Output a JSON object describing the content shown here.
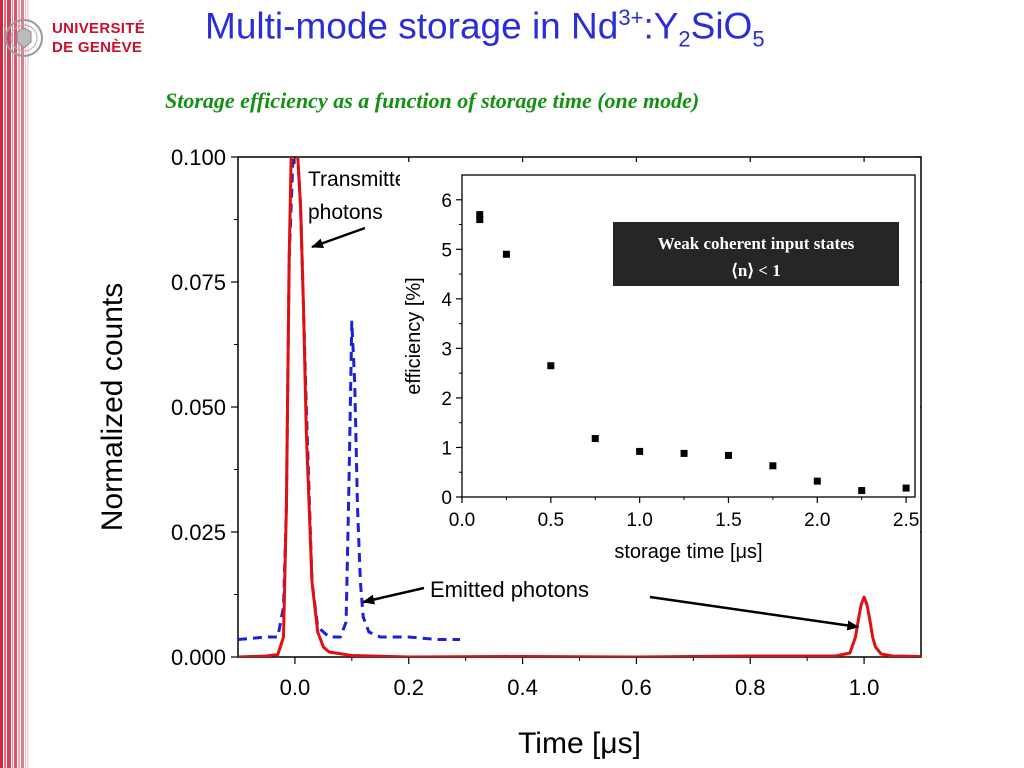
{
  "logo": {
    "line1": "UNIVERSITÉ",
    "line2": "DE GENÈVE",
    "seal_icon": "university-seal-icon",
    "color": "#c8102e"
  },
  "title": {
    "main": "Multi-mode storage in Nd",
    "sup": "3+",
    "mid": ":Y",
    "sub1": "2",
    "mid2": "SiO",
    "sub2": "5",
    "color": "#2b2ed8"
  },
  "subtitle": "Storage efficiency as a function of storage time (one mode)",
  "colors": {
    "red": "#e01010",
    "blue": "#1f1fd8",
    "green": "#129112",
    "stripe": "#c8102e"
  },
  "chart_data": [
    {
      "type": "line",
      "xlabel": "Time [μs]",
      "ylabel": "Normalized counts",
      "xlim": [
        -0.1,
        1.1
      ],
      "ylim": [
        0,
        0.1
      ],
      "xticks": [
        0.0,
        0.2,
        0.4,
        0.6,
        0.8,
        1.0
      ],
      "xtick_labels": [
        "0.0",
        "0.2",
        "0.4",
        "0.6",
        "0.8",
        "1.0"
      ],
      "yticks": [
        0.0,
        0.025,
        0.05,
        0.075,
        0.1
      ],
      "ytick_labels": [
        "0.000",
        "0.025",
        "0.050",
        "0.075",
        "0.100"
      ],
      "series": [
        {
          "style": "solid",
          "color": "#e01010",
          "x": [
            -0.1,
            -0.05,
            -0.03,
            -0.02,
            -0.015,
            -0.01,
            -0.005,
            0.0,
            0.005,
            0.01,
            0.015,
            0.02,
            0.03,
            0.04,
            0.05,
            0.06,
            0.1,
            0.2,
            0.4,
            0.6,
            0.8,
            0.95,
            0.975,
            0.985,
            0.99,
            0.995,
            1.0,
            1.005,
            1.01,
            1.015,
            1.02,
            1.03,
            1.05,
            1.1
          ],
          "y": [
            0.0,
            0.0002,
            0.0005,
            0.004,
            0.03,
            0.08,
            0.11,
            0.11,
            0.1,
            0.09,
            0.07,
            0.045,
            0.015,
            0.005,
            0.002,
            0.001,
            0.0003,
            0.0,
            0.0001,
            0.0,
            0.0002,
            0.0002,
            0.0008,
            0.004,
            0.0075,
            0.0105,
            0.012,
            0.0105,
            0.0075,
            0.004,
            0.002,
            0.0006,
            0.0002,
            0.0001
          ]
        },
        {
          "style": "dashed",
          "color": "#1f1fd8",
          "x": [
            -0.1,
            -0.05,
            -0.03,
            -0.02,
            -0.015,
            -0.01,
            0.0,
            0.01,
            0.02,
            0.03,
            0.04,
            0.06,
            0.08,
            0.09,
            0.095,
            0.1,
            0.105,
            0.11,
            0.115,
            0.12,
            0.13,
            0.15,
            0.2,
            0.25,
            0.29
          ],
          "y": [
            0.0035,
            0.004,
            0.004,
            0.01,
            0.03,
            0.08,
            0.11,
            0.09,
            0.05,
            0.015,
            0.006,
            0.004,
            0.004,
            0.007,
            0.035,
            0.067,
            0.055,
            0.03,
            0.015,
            0.008,
            0.005,
            0.004,
            0.004,
            0.0035,
            0.0035
          ]
        }
      ],
      "annotations": [
        {
          "text_lines": [
            "Transmitted",
            "photons"
          ],
          "points_to": [
            0.03,
            0.082
          ]
        },
        {
          "text": "Emitted photons",
          "points_to": [
            [
              0.12,
              0.011
            ],
            [
              0.99,
              0.006
            ]
          ]
        }
      ]
    },
    {
      "type": "scatter",
      "xlabel": "storage time [μs]",
      "ylabel": "efficiency [%]",
      "xlim": [
        0,
        2.55
      ],
      "ylim": [
        0,
        6.5
      ],
      "xticks": [
        0.0,
        0.5,
        1.0,
        1.5,
        2.0,
        2.5
      ],
      "xtick_labels": [
        "0.0",
        "0.5",
        "1.0",
        "1.5",
        "2.0",
        "2.5"
      ],
      "yticks": [
        0,
        1,
        2,
        3,
        4,
        5,
        6
      ],
      "ytick_labels": [
        "0",
        "1",
        "2",
        "3",
        "4",
        "5",
        "6"
      ],
      "x": [
        0.1,
        0.1,
        0.25,
        0.5,
        0.75,
        1.0,
        1.25,
        1.5,
        1.75,
        2.0,
        2.25,
        2.5
      ],
      "y": [
        5.6,
        5.7,
        4.9,
        2.65,
        1.18,
        0.92,
        0.88,
        0.84,
        0.63,
        0.32,
        0.13,
        0.18
      ],
      "legend_box": {
        "line1": "Weak coherent input states",
        "line2": "⟨n⟩ < 1",
        "placement": "top-right"
      }
    }
  ]
}
